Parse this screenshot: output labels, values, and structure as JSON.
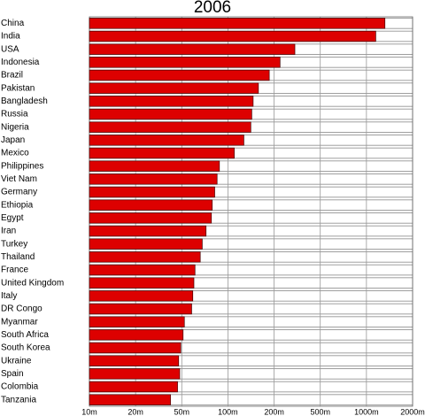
{
  "chart_data": {
    "type": "bar",
    "orientation": "horizontal",
    "title": "2006",
    "categories": [
      "China",
      "India",
      "USA",
      "Indonesia",
      "Brazil",
      "Pakistan",
      "Bangladesh",
      "Russia",
      "Nigeria",
      "Japan",
      "Mexico",
      "Philippines",
      "Viet Nam",
      "Germany",
      "Ethiopia",
      "Egypt",
      "Iran",
      "Turkey",
      "Thailand",
      "France",
      "United Kingdom",
      "Italy",
      "DR Congo",
      "Myanmar",
      "South Africa",
      "South Korea",
      "Ukraine",
      "Spain",
      "Colombia",
      "Tanzania"
    ],
    "values": [
      1320,
      1150,
      302,
      225,
      186,
      158,
      146,
      143,
      141,
      127,
      110,
      88,
      85,
      82,
      79,
      78,
      72,
      68,
      66,
      61,
      60,
      59,
      58,
      52,
      51,
      49,
      47,
      48,
      46,
      40
    ],
    "color": "#dd0000",
    "log_scale": true,
    "xlim": [
      10000000,
      2000000000
    ],
    "xticks": [
      {
        "value": 10000000,
        "label": "10m"
      },
      {
        "value": 20000000,
        "label": "20m"
      },
      {
        "value": 50000000,
        "label": "50m"
      },
      {
        "value": 100000000,
        "label": "100m"
      },
      {
        "value": 200000000,
        "label": "200m"
      },
      {
        "value": 500000000,
        "label": "500m"
      },
      {
        "value": 1000000000,
        "label": "1000m"
      },
      {
        "value": 2000000000,
        "label": "2000m"
      }
    ],
    "value_unit": 1000000,
    "grid": true
  }
}
